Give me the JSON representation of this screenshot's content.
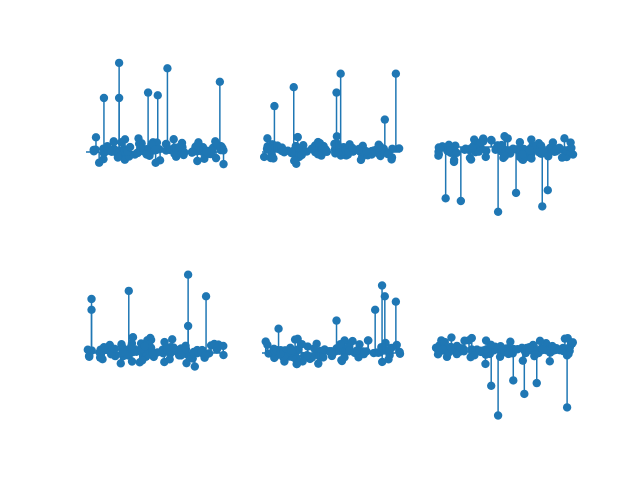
{
  "figure": {
    "background": "#ffffff",
    "rows": 2,
    "cols": 3,
    "axes_visible": false
  },
  "colors": {
    "stem": "#1f77b4",
    "marker": "#1f77b4"
  },
  "chart_data": [
    {
      "type": "stem",
      "title": "",
      "xlabel": "",
      "ylabel": "",
      "baseline": 0,
      "xlim": [
        0,
        100
      ],
      "ylim": [
        -0.7,
        3.6
      ],
      "grid": false,
      "extremes": [
        {
          "x": 24,
          "y": 3.3
        },
        {
          "x": 59,
          "y": 3.1
        },
        {
          "x": 97,
          "y": 2.6
        },
        {
          "x": 13,
          "y": 2.0
        },
        {
          "x": 45,
          "y": 2.2
        },
        {
          "x": 24,
          "y": 2.0
        },
        {
          "x": 52,
          "y": 2.1
        }
      ],
      "seed": 11,
      "sign": 1
    },
    {
      "type": "stem",
      "title": "",
      "xlabel": "",
      "ylabel": "",
      "baseline": 0,
      "xlim": [
        0,
        100
      ],
      "ylim": [
        -0.7,
        3.6
      ],
      "grid": false,
      "extremes": [
        {
          "x": 97,
          "y": 2.9
        },
        {
          "x": 57,
          "y": 2.9
        },
        {
          "x": 23,
          "y": 2.4
        },
        {
          "x": 54,
          "y": 2.2
        },
        {
          "x": 9,
          "y": 1.7
        },
        {
          "x": 89,
          "y": 1.2
        }
      ],
      "seed": 23,
      "sign": 1
    },
    {
      "type": "stem",
      "title": "",
      "xlabel": "",
      "ylabel": "",
      "baseline": 0,
      "xlim": [
        0,
        100
      ],
      "ylim": [
        -2.8,
        1.5
      ],
      "grid": false,
      "extremes": [
        {
          "x": 45,
          "y": -2.4
        },
        {
          "x": 77,
          "y": -2.2
        },
        {
          "x": 18,
          "y": -2.0
        },
        {
          "x": 7,
          "y": -1.9
        },
        {
          "x": 58,
          "y": -1.7
        },
        {
          "x": 81,
          "y": -1.6
        }
      ],
      "seed": 37,
      "sign": -1
    },
    {
      "type": "stem",
      "title": "",
      "xlabel": "",
      "ylabel": "",
      "baseline": 0,
      "xlim": [
        0,
        100
      ],
      "ylim": [
        -0.7,
        3.6
      ],
      "grid": false,
      "extremes": [
        {
          "x": 74,
          "y": 2.9
        },
        {
          "x": 4,
          "y": 2.0
        },
        {
          "x": 4,
          "y": 1.6
        },
        {
          "x": 31,
          "y": 2.3
        },
        {
          "x": 87,
          "y": 2.1
        },
        {
          "x": 74,
          "y": 1.0
        }
      ],
      "seed": 41,
      "sign": 1
    },
    {
      "type": "stem",
      "title": "",
      "xlabel": "",
      "ylabel": "",
      "baseline": 0,
      "xlim": [
        0,
        100
      ],
      "ylim": [
        -0.7,
        3.6
      ],
      "grid": false,
      "extremes": [
        {
          "x": 87,
          "y": 2.5
        },
        {
          "x": 89,
          "y": 2.1
        },
        {
          "x": 97,
          "y": 1.9
        },
        {
          "x": 82,
          "y": 1.6
        },
        {
          "x": 54,
          "y": 1.2
        },
        {
          "x": 12,
          "y": 0.9
        }
      ],
      "seed": 53,
      "sign": 1
    },
    {
      "type": "stem",
      "title": "",
      "xlabel": "",
      "ylabel": "",
      "baseline": 0,
      "xlim": [
        0,
        100
      ],
      "ylim": [
        -2.8,
        1.5
      ],
      "grid": false,
      "extremes": [
        {
          "x": 45,
          "y": -2.5
        },
        {
          "x": 95,
          "y": -2.2
        },
        {
          "x": 64,
          "y": -1.7
        },
        {
          "x": 40,
          "y": -1.4
        },
        {
          "x": 56,
          "y": -1.2
        },
        {
          "x": 73,
          "y": -1.3
        }
      ],
      "seed": 67,
      "sign": -1
    }
  ]
}
